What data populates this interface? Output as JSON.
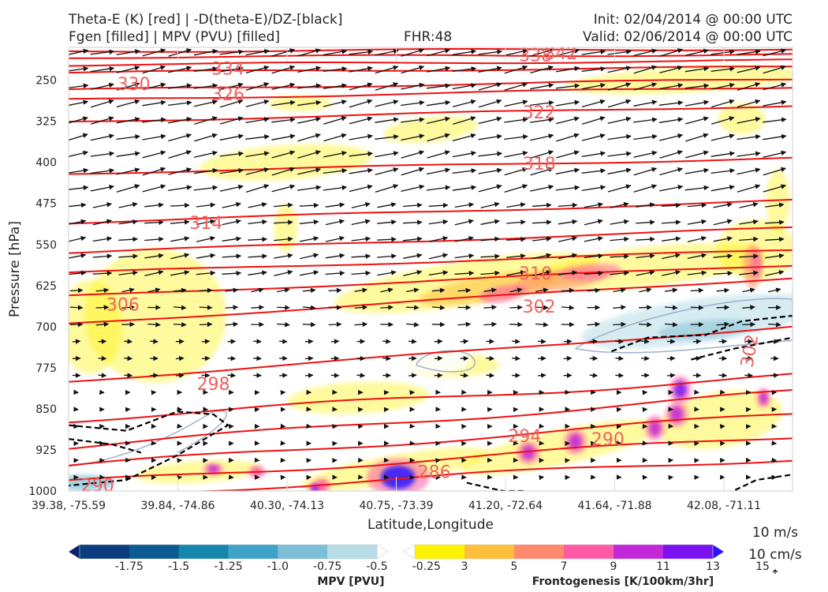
{
  "header": {
    "line1_left": "Theta-E (K) [red] | -D(theta-E)/DZ-[black]",
    "line2_left": "Fgen [filled] | MPV (PVU) [filled]",
    "fhr": "FHR:48",
    "init": "Init: 02/04/2014 @ 00:00 UTC",
    "valid": "Valid: 02/06/2014 @ 00:00 UTC"
  },
  "chart_data": {
    "type": "cross-section",
    "xlabel": "Latitude,Longitude",
    "ylabel": "Pressure [hPa]",
    "x_ticks": [
      "39.38, -75.59",
      "39.84, -74.86",
      "40.30, -74.13",
      "40.75, -73.39",
      "41.20, -72.64",
      "41.64, -71.88",
      "42.08, -71.11"
    ],
    "y_ticks": [
      250,
      325,
      400,
      475,
      550,
      625,
      700,
      775,
      850,
      925,
      1000
    ],
    "ylim": [
      1000,
      190
    ],
    "y_scale": "linear, inverted",
    "theta_e_labels": [
      {
        "text": "342",
        "x": 0.68,
        "p": 200
      },
      {
        "text": "338",
        "x": 0.645,
        "p": 204
      },
      {
        "text": "334",
        "x": 0.22,
        "p": 228
      },
      {
        "text": "330",
        "x": 0.09,
        "p": 256
      },
      {
        "text": "326",
        "x": 0.22,
        "p": 275
      },
      {
        "text": "322",
        "x": 0.65,
        "p": 308
      },
      {
        "text": "318",
        "x": 0.65,
        "p": 402
      },
      {
        "text": "314",
        "x": 0.19,
        "p": 510
      },
      {
        "text": "310",
        "x": 0.645,
        "p": 602
      },
      {
        "text": "306",
        "x": 0.075,
        "p": 659
      },
      {
        "text": "302",
        "x": 0.65,
        "p": 663
      },
      {
        "text": "302",
        "x": 0.94,
        "p": 744
      },
      {
        "text": "298",
        "x": 0.2,
        "p": 804
      },
      {
        "text": "294",
        "x": 0.63,
        "p": 899
      },
      {
        "text": "290",
        "x": 0.745,
        "p": 905
      },
      {
        "text": "286",
        "x": 0.505,
        "p": 965
      },
      {
        "text": "290",
        "x": 0.04,
        "p": 989
      }
    ],
    "fgen_colorbar": {
      "label": "Frontogenesis [K/100km/3hr]",
      "ticks": [
        "3",
        "5",
        "7",
        "9",
        "11",
        "13",
        "15"
      ],
      "colors": [
        "#ffffff",
        "#fff200",
        "#ffbf3c",
        "#ff8a6e",
        "#ff5aa6",
        "#c228d8",
        "#7a12f2",
        "#2b12ff"
      ]
    },
    "mpv_colorbar": {
      "label": "MPV [PVU]",
      "ticks": [
        "-1.75",
        "-1.5",
        "-1.25",
        "-1.0",
        "-0.75",
        "-0.5",
        "-0.25"
      ],
      "colors": [
        "#08216b",
        "#0b3c7f",
        "#0b5a92",
        "#1686ad",
        "#3fa3c7",
        "#7dbfd6",
        "#b8dde6",
        "#ffffff"
      ]
    },
    "wind_key": {
      "line1": "10 m/s",
      "line2": "10 cm/s"
    }
  }
}
